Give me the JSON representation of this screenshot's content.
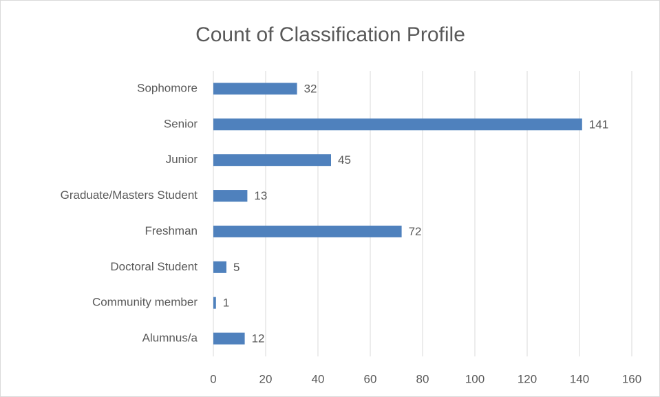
{
  "chart_data": {
    "type": "hbar",
    "title": "Count of Classification Profile",
    "categories": [
      "Sophomore",
      "Senior",
      "Junior",
      "Graduate/Masters Student",
      "Freshman",
      "Doctoral Student",
      "Community member",
      "Alumnus/a"
    ],
    "values": [
      32,
      141,
      45,
      13,
      72,
      5,
      1,
      12
    ],
    "color": "#4f81bd",
    "xlim": [
      0,
      160
    ],
    "xticks": [
      0,
      20,
      40,
      60,
      80,
      100,
      120,
      140,
      160
    ],
    "grid": true
  }
}
